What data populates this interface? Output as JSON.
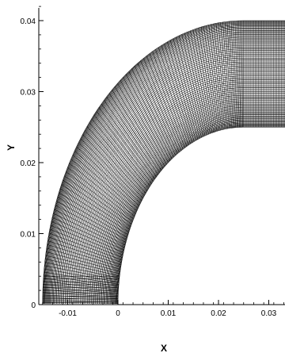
{
  "chart_data": {
    "type": "mesh",
    "xlabel": "X",
    "ylabel": "Y",
    "xlim": [
      -0.0155,
      0.0335
    ],
    "ylim": [
      0,
      0.0445
    ],
    "x_ticks": [
      "-0.01",
      "0",
      "0.01",
      "0.02",
      "0.03"
    ],
    "x_tick_values": [
      -0.01,
      0,
      0.01,
      0.02,
      0.03
    ],
    "y_ticks": [
      "0",
      "0.01",
      "0.02",
      "0.03",
      "0.04"
    ],
    "y_tick_values": [
      0,
      0.01,
      0.02,
      0.03,
      0.04
    ],
    "mesh": {
      "center_x": 0.025,
      "inner_radius": 0.025,
      "outer_radius": 0.04,
      "radial_lines": 70,
      "angular_lines": 110,
      "straight_lines": 32,
      "line_color": "#000000"
    }
  }
}
